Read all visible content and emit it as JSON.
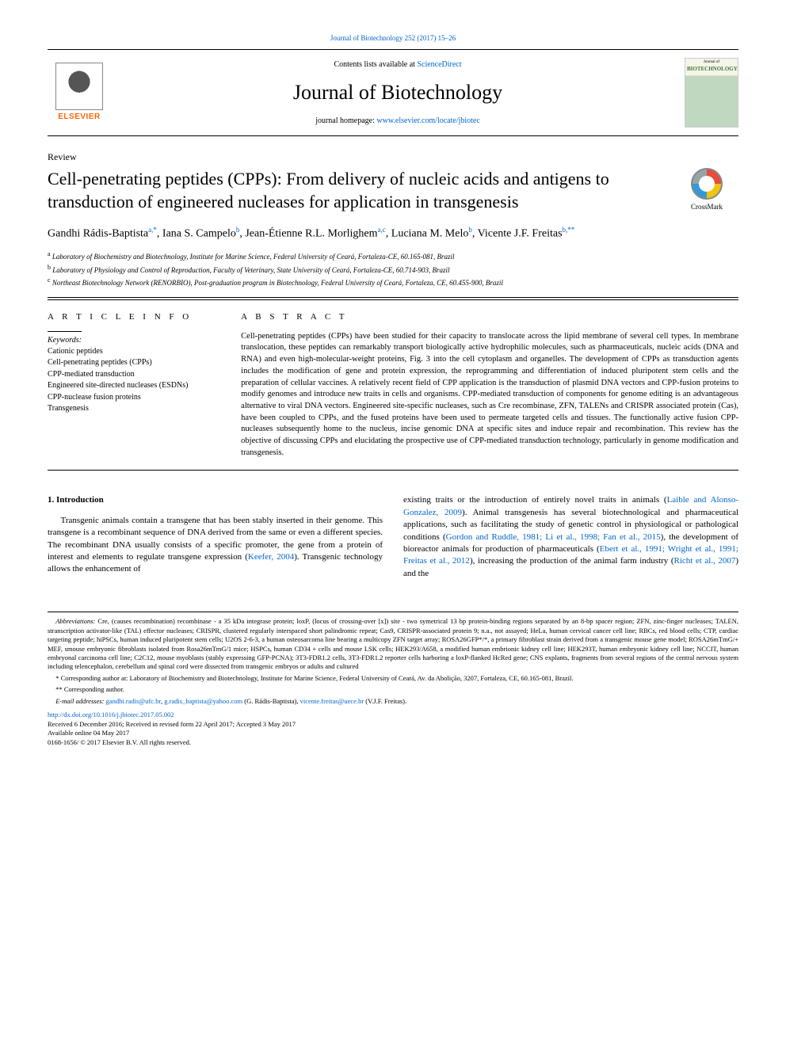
{
  "colors": {
    "link": "#0066cc",
    "elsevier_orange": "#ff6600",
    "text": "#000000",
    "background": "#ffffff",
    "rule": "#000000"
  },
  "typography": {
    "body_family": "Georgia, 'Times New Roman', serif",
    "journal_name_size_pt": 26,
    "title_size_pt": 22,
    "authors_size_pt": 14,
    "body_size_pt": 11,
    "footnote_size_pt": 8.5
  },
  "top_citation": {
    "prefix": "",
    "link_text": "Journal of Biotechnology 252 (2017) 15–26"
  },
  "header": {
    "contents_prefix": "Contents lists available at ",
    "contents_link": "ScienceDirect",
    "journal_name": "Journal of Biotechnology",
    "homepage_prefix": "journal homepage: ",
    "homepage_link": "www.elsevier.com/locate/jbiotec",
    "elsevier_label": "ELSEVIER",
    "cover_small_text": "Journal of",
    "cover_label": "BIOTECHNOLOGY"
  },
  "crossmark": {
    "label": "CrossMark"
  },
  "article_type": "Review",
  "title": "Cell-penetrating peptides (CPPs): From delivery of nucleic acids and antigens to transduction of engineered nucleases for application in transgenesis",
  "authors_html": "Gandhi Rádis-Baptista<sup>a,*</sup>, Iana S. Campelo<sup>b</sup>, Jean-Étienne R.L. Morlighem<sup>a,c</sup>, Luciana M. Melo<sup>b</sup>, Vicente J.F. Freitas<sup>b,**</sup>",
  "affiliations": [
    "a Laboratory of Biochemistry and Biotechnology, Institute for Marine Science, Federal University of Ceará, Fortaleza-CE, 60.165-081, Brazil",
    "b Laboratory of Physiology and Control of Reproduction, Faculty of Veterinary, State University of Ceará, Fortaleza-CE, 60.714-903, Brazil",
    "c Northeast Biotechnology Network (RENORBIO), Post-graduation program in Biotechnology, Federal University of Ceará, Fortaleza, CE, 60.455-900, Brazil"
  ],
  "info": {
    "heading": "A R T I C L E  I N F O",
    "keywords_label": "Keywords:",
    "keywords": [
      "Cationic peptides",
      "Cell-penetrating peptides (CPPs)",
      "CPP-mediated transduction",
      "Engineered site-directed nucleases (ESDNs)",
      "CPP-nuclease fusion proteins",
      "Transgenesis"
    ]
  },
  "abstract": {
    "heading": "A B S T R A C T",
    "text": "Cell-penetrating peptides (CPPs) have been studied for their capacity to translocate across the lipid membrane of several cell types. In membrane translocation, these peptides can remarkably transport biologically active hydrophilic molecules, such as pharmaceuticals, nucleic acids (DNA and RNA) and even high-molecular-weight proteins, Fig. 3 into the cell cytoplasm and organelles. The development of CPPs as transduction agents includes the modification of gene and protein expression, the reprogramming and differentiation of induced pluripotent stem cells and the preparation of cellular vaccines. A relatively recent field of CPP application is the transduction of plasmid DNA vectors and CPP-fusion proteins to modify genomes and introduce new traits in cells and organisms. CPP-mediated transduction of components for genome editing is an advantageous alternative to viral DNA vectors. Engineered site-specific nucleases, such as Cre recombinase, ZFN, TALENs and CRISPR associated protein (Cas), have been coupled to CPPs, and the fused proteins have been used to permeate targeted cells and tissues. The functionally active fusion CPP-nucleases subsequently home to the nucleus, incise genomic DNA at specific sites and induce repair and recombination. This review has the objective of discussing CPPs and elucidating the prospective use of CPP-mediated transduction technology, particularly in genome modification and transgenesis."
  },
  "body": {
    "intro_heading": "1. Introduction",
    "left_para": "Transgenic animals contain a transgene that has been stably inserted in their genome. This transgene is a recombinant sequence of DNA derived from the same or even a different species. The recombinant DNA usually consists of a specific promoter, the gene from a protein of interest and elements to regulate transgene expression (",
    "left_ref1": "Keefer, 2004",
    "left_after_ref1": "). Transgenic technology allows the enhancement of",
    "right_pre": "existing traits or the introduction of entirely novel traits in animals (",
    "right_ref1": "Laible and Alonso-Gonzalez, 2009",
    "right_mid1": "). Animal transgenesis has several biotechnological and pharmaceutical applications, such as facilitating the study of genetic control in physiological or pathological conditions (",
    "right_ref2": "Gordon and Ruddle, 1981; Li et al., 1998; Fan et al., 2015",
    "right_mid2": "), the development of bioreactor animals for production of pharmaceuticals (",
    "right_ref3": "Ebert et al., 1991; Wright et al., 1991; Freitas et al., 2012",
    "right_mid3": "), increasing the production of the animal farm industry (",
    "right_ref4": "Richt et al., 2007",
    "right_tail": ") and the"
  },
  "footnotes": {
    "abbrev_label": "Abbreviations:",
    "abbrev_text": " Cre, (causes recombination) recombinase - a 35 kDa integrase protein; loxP, (locus of crossing-over [x]) site - two symetrical 13 bp protein-binding regions separated by an 8-bp spacer region; ZFN, zinc-finger nucleases; TALEN, stranscription activator-like (TAL) effector nucleases; CRISPR, clustered regularly interspaced short palindromic repeat; Cas9, CRISPR-associated protein 9; n.a., not assayed; HeLa, human cervical cancer cell line; RBCs, red blood cells; CTP, cardiac targeting peptide; hiPSCs, human induced pluripotent stem cells; U2OS 2-6-3, a human osteosarcoma line bearing a multicopy ZFN target array; ROSA26GFP*/*, a primary fibroblast strain derived from a transgenic mouse gene model; ROSA26mTmG/+ MEF, smouse embryonic fibroblasts isolated from Rosa26mTmG/1 mice; HSPCs, human CD34 + cells and mouse LSK cells; HEK293/A658, a modified human embrionic kidney cell line; HEK293T, human embryonic kidney cell line; NCCIT, human embryonal carcinoma cell line; C2C12, mouse myoblasts (stably expressing GFP-PCNA); 3T3-FDR1.2 cells, 3T3-FDR1.2 reporter cells harboring a loxP-flanked HcRed gene; CNS explants, fragments from several regions of the central nervous system including telencephalon, cerebellum and spinal cord were dissected from transgenic embryos or adults and cultured",
    "corr1": "* Corresponding author at: Laboratory of Biochemistry and Biotechnology, Institute for Marine Science, Federal University of Ceará, Av. da Abolição, 3207, Fortaleza, CE, 60.165-081, Brazil.",
    "corr2": "** Corresponding author.",
    "email_label": "E-mail addresses:",
    "email1": "gandhi.radis@ufc.br",
    "email_sep1": ", ",
    "email2": "g.radis_baptista@yahoo.com",
    "email_attr1": " (G. Rádis-Baptista), ",
    "email3": "vicente.freitas@uece.br",
    "email_attr2": " (V.J.F. Freitas)."
  },
  "pub": {
    "doi_link": "http://dx.doi.org/10.1016/j.jbiotec.2017.05.002",
    "dates": "Received 6 December 2016; Received in revised form 22 April 2017; Accepted 3 May 2017",
    "online": "Available online 04 May 2017",
    "copyright": "0168-1656/ © 2017 Elsevier B.V. All rights reserved."
  }
}
